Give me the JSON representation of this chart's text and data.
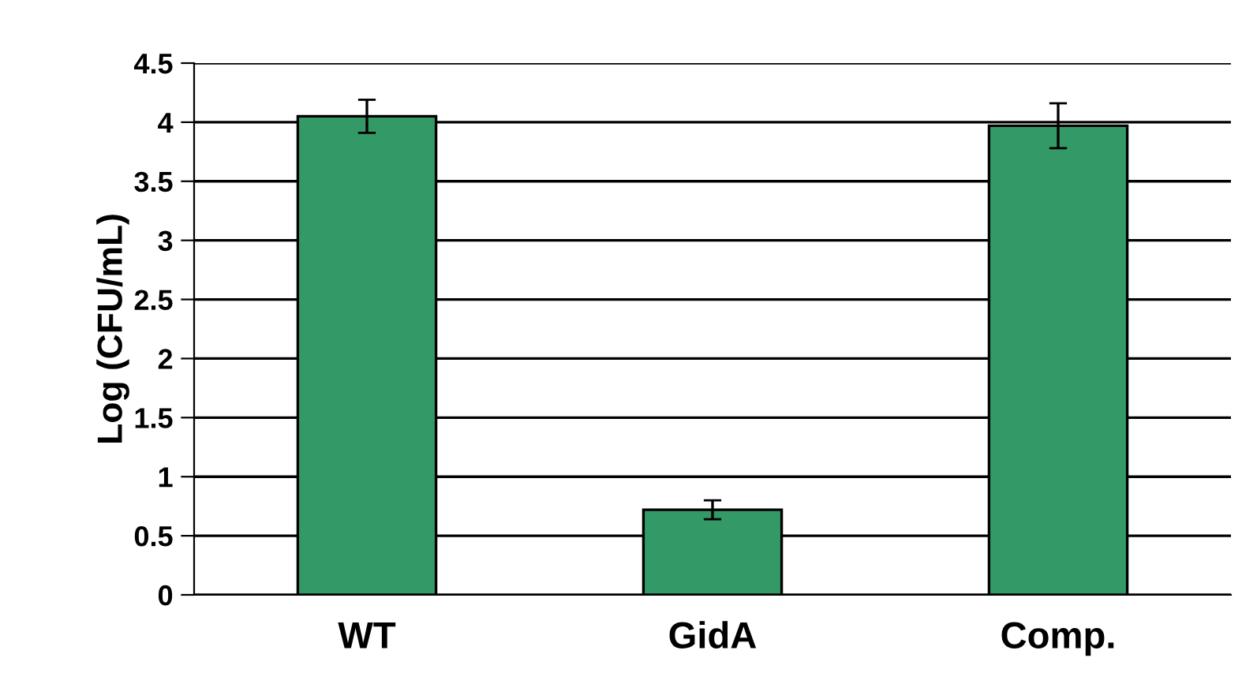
{
  "chart_data": {
    "type": "bar",
    "ylabel": "Log (CFU/mL)",
    "categories": [
      "WT",
      "GidA",
      "Comp."
    ],
    "values": [
      4.05,
      0.72,
      3.97
    ],
    "errors": [
      0.14,
      0.08,
      0.19
    ],
    "color": "#339966",
    "ylim": [
      0,
      4.5
    ],
    "yticks": [
      0,
      0.5,
      1,
      1.5,
      2,
      2.5,
      3,
      3.5,
      4,
      4.5
    ],
    "grid": "y",
    "legend": false
  }
}
